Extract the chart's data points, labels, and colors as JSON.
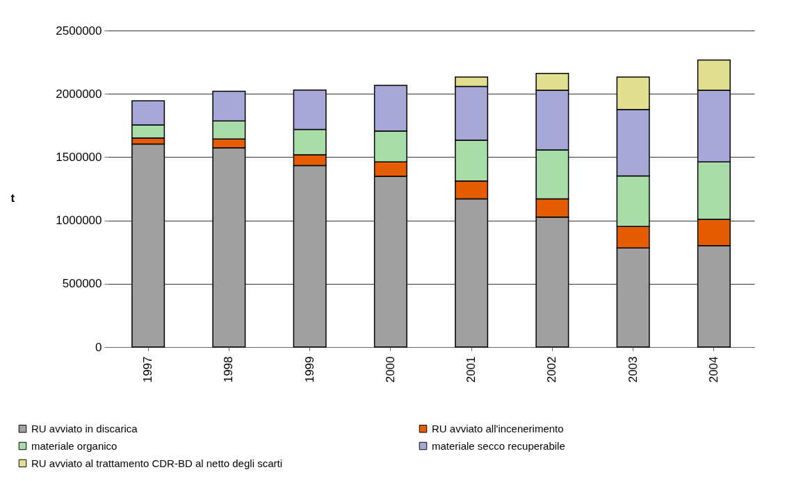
{
  "chart_data": {
    "type": "bar",
    "stacked": true,
    "ylabel": "t",
    "categories": [
      "1997",
      "1998",
      "1999",
      "2000",
      "2001",
      "2002",
      "2003",
      "2004"
    ],
    "ylim": [
      0,
      2500000
    ],
    "yticks": [
      0,
      500000,
      1000000,
      1500000,
      2000000,
      2500000
    ],
    "grid": "y",
    "legend": "bottom",
    "series": [
      {
        "name": "RU avviato in discarica",
        "color": "#a0a0a0",
        "values": [
          1603000,
          1573000,
          1434000,
          1348000,
          1170000,
          1027000,
          782000,
          801000
        ]
      },
      {
        "name": "RU avviato all'incenerimento",
        "color": "#e65c00",
        "values": [
          48000,
          70000,
          85000,
          114000,
          142000,
          143000,
          170000,
          208000
        ]
      },
      {
        "name": "materiale organico",
        "color": "#a8dca8",
        "values": [
          104000,
          143000,
          200000,
          245000,
          322000,
          387000,
          399000,
          453000
        ]
      },
      {
        "name": "materiale secco recuperabile",
        "color": "#a8a8d8",
        "values": [
          190000,
          234000,
          311000,
          360000,
          424000,
          472000,
          526000,
          567000
        ]
      },
      {
        "name": "RU avviato al trattamento CDR-BD al netto degli scarti",
        "color": "#e0e090",
        "values": [
          null,
          null,
          null,
          null,
          75000,
          133000,
          256000,
          238000
        ]
      }
    ]
  }
}
